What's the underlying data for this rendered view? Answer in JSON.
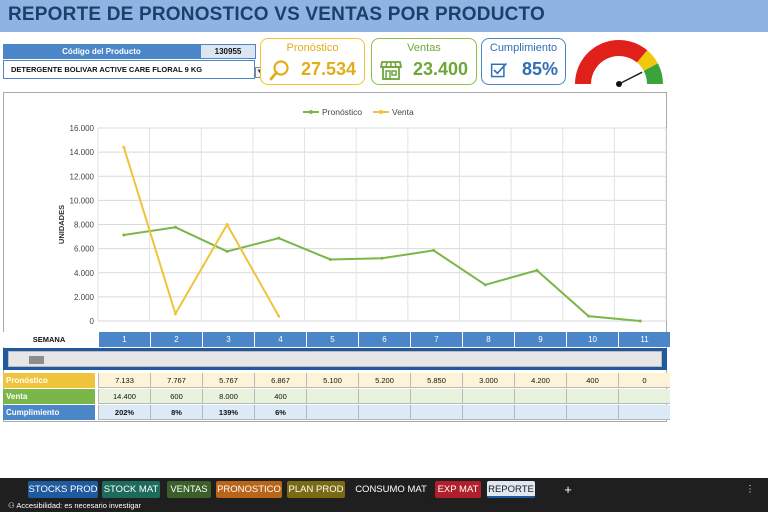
{
  "title": "REPORTE DE PRONOSTICO VS VENTAS POR PRODUCTO",
  "product": {
    "code_label": "Código del Producto",
    "code_value": "130955",
    "name": "DETERGENTE BOLIVAR ACTIVE CARE FLORAL 9 KG"
  },
  "kpis": {
    "pronostico": {
      "label": "Pronóstico",
      "value": "27.534",
      "icon": "magnifier-icon",
      "color": "#e3ad1a"
    },
    "ventas": {
      "label": "Ventas",
      "value": "23.400",
      "icon": "store-icon",
      "color": "#6fa63a"
    },
    "cumplimiento": {
      "label": "Cumplimiento",
      "value": "85%",
      "icon": "checkbox-icon",
      "color": "#2f6fb5"
    }
  },
  "gauge": {
    "value_percent": 85,
    "colors": [
      "#e0201a",
      "#f2c80f",
      "#3aa33a"
    ]
  },
  "chart_data": {
    "type": "line",
    "x": [
      1,
      2,
      3,
      4,
      5,
      6,
      7,
      8,
      9,
      10,
      11
    ],
    "series": [
      {
        "name": "Pronóstico",
        "color": "#7ab648",
        "values": [
          7133,
          7767,
          5767,
          6867,
          5100,
          5200,
          5850,
          3000,
          4200,
          400,
          0
        ]
      },
      {
        "name": "Venta",
        "color": "#f0c33c",
        "values": [
          14400,
          600,
          8000,
          400,
          null,
          null,
          null,
          null,
          null,
          null,
          null
        ]
      }
    ],
    "ylabel": "UNIDADES",
    "ylim": [
      0,
      16000
    ],
    "yticks": [
      "0",
      "2.000",
      "4.000",
      "6.000",
      "8.000",
      "10.000",
      "12.000",
      "14.000",
      "16.000"
    ],
    "grid": true,
    "legend": "top-center"
  },
  "table": {
    "week_label": "SEMANA",
    "weeks": [
      "1",
      "2",
      "3",
      "4",
      "5",
      "6",
      "7",
      "8",
      "9",
      "10",
      "11"
    ],
    "rows": [
      {
        "label": "Pronóstico",
        "color": "#f0c33c",
        "cell_bg": "#fdf3d6",
        "values": [
          "7.133",
          "7.767",
          "5.767",
          "6.867",
          "5.100",
          "5.200",
          "5.850",
          "3.000",
          "4.200",
          "400",
          "0"
        ]
      },
      {
        "label": "Venta",
        "color": "#7ab648",
        "cell_bg": "#e9f2dc",
        "values": [
          "14.400",
          "600",
          "8.000",
          "400",
          "",
          "",
          "",
          "",
          "",
          "",
          ""
        ]
      },
      {
        "label": "Cumplimiento",
        "color": "#4a86c8",
        "cell_bg": "#dce9f7",
        "values": [
          "202%",
          "8%",
          "139%",
          "6%",
          "",
          "",
          "",
          "",
          "",
          "",
          ""
        ]
      }
    ]
  },
  "tabs": [
    {
      "label": "STOCKS PROD",
      "bg": "#1f5aa0"
    },
    {
      "label": "STOCK MAT",
      "bg": "#1d6b5a"
    },
    {
      "label": "VENTAS",
      "bg": "#3a5f2a"
    },
    {
      "label": "PRONOSTICO",
      "bg": "#b8651a"
    },
    {
      "label": "PLAN PROD",
      "bg": "#7a6a14"
    },
    {
      "label": "CONSUMO MAT",
      "bg": "#1f1f1f"
    },
    {
      "label": "EXP MAT",
      "bg": "#b0202a"
    },
    {
      "label": "REPORTE",
      "bg": "#dfe7f2",
      "active": true
    }
  ],
  "add_tab": "+",
  "status_text": "Accesibilidad: es necesario investigar"
}
